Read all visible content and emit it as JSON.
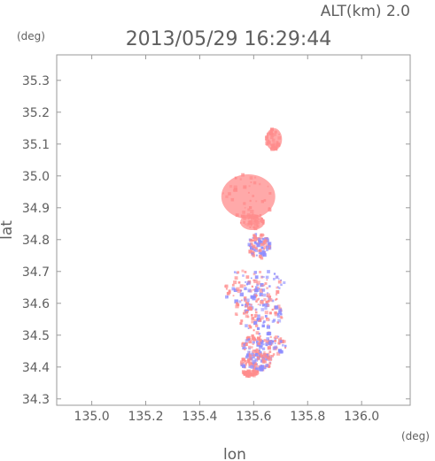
{
  "header": {
    "altitude_label": "ALT(km) 2.0",
    "timestamp": "2013/05/29 16:29:44"
  },
  "chart_data": {
    "type": "heatmap",
    "title": "2013/05/29 16:29:44",
    "xlabel": "lon",
    "ylabel": "lat",
    "x_unit": "(deg)",
    "y_unit": "(deg)",
    "xlim": [
      134.87,
      136.18
    ],
    "ylim": [
      34.28,
      35.38
    ],
    "x_ticks": [
      "135.0",
      "135.2",
      "135.4",
      "135.6",
      "135.8",
      "136.0"
    ],
    "y_ticks": [
      "34.3",
      "34.4",
      "34.5",
      "34.6",
      "34.7",
      "34.8",
      "34.9",
      "35.0",
      "35.1",
      "35.2",
      "35.3"
    ],
    "grid": false,
    "colors": {
      "positive": "#ff8c8c",
      "negative": "#8c8cff",
      "axis": "#9a9a9a",
      "text": "#5f5f5f"
    },
    "regions": [
      {
        "lon": 135.675,
        "lat": 35.115,
        "rx": 0.03,
        "ry": 0.035,
        "sign": "positive"
      },
      {
        "lon": 135.58,
        "lat": 34.935,
        "rx": 0.1,
        "ry": 0.07,
        "sign": "positive"
      },
      {
        "lon": 135.595,
        "lat": 34.855,
        "rx": 0.045,
        "ry": 0.025,
        "sign": "positive"
      },
      {
        "lon": 135.62,
        "lat": 34.78,
        "rx": 0.04,
        "ry": 0.04,
        "sign": "mixed"
      },
      {
        "lon": 135.6,
        "lat": 34.65,
        "rx": 0.12,
        "ry": 0.06,
        "sign": "mixed"
      },
      {
        "lon": 135.62,
        "lat": 34.57,
        "rx": 0.09,
        "ry": 0.06,
        "sign": "mixed"
      },
      {
        "lon": 135.64,
        "lat": 34.47,
        "rx": 0.08,
        "ry": 0.04,
        "sign": "mixed"
      },
      {
        "lon": 135.61,
        "lat": 34.42,
        "rx": 0.06,
        "ry": 0.03,
        "sign": "mixed"
      },
      {
        "lon": 135.59,
        "lat": 34.38,
        "rx": 0.03,
        "ry": 0.01,
        "sign": "positive"
      }
    ]
  }
}
